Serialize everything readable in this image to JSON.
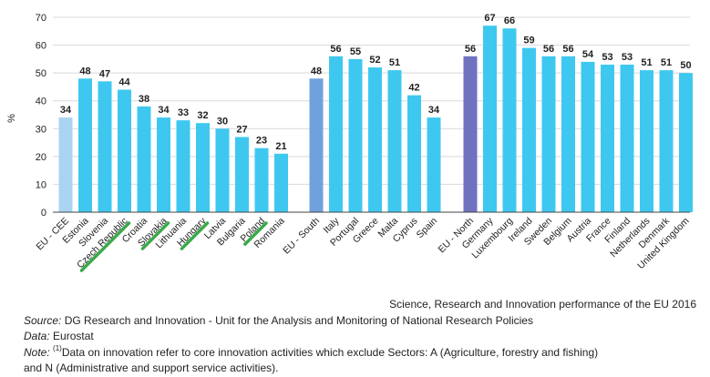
{
  "chart_data": {
    "type": "bar",
    "ylabel": "%",
    "ylim": [
      0,
      70
    ],
    "yticks": [
      0,
      10,
      20,
      30,
      40,
      50,
      60,
      70
    ],
    "grid": true,
    "groups": [
      {
        "categories": [
          "EU - CEE",
          "Estonia",
          "Slovenia",
          "Czech Republic",
          "Croatia",
          "Slovakia",
          "Lithuania",
          "Hungary",
          "Latvia",
          "Bulgaria",
          "Poland",
          "Romania"
        ],
        "values": [
          34,
          48,
          47,
          44,
          38,
          34,
          33,
          32,
          30,
          27,
          23,
          21
        ]
      },
      {
        "categories": [
          "EU - South",
          "Italy",
          "Portugal",
          "Greece",
          "Malta",
          "Cyprus",
          "Spain"
        ],
        "values": [
          48,
          56,
          55,
          52,
          51,
          42,
          34
        ]
      },
      {
        "categories": [
          "EU - North",
          "Germany",
          "Luxembourg",
          "Ireland",
          "Sweden",
          "Belgium",
          "Austria",
          "France",
          "Finland",
          "Netherlands",
          "Denmark",
          "United Kingdom"
        ],
        "values": [
          56,
          67,
          66,
          59,
          56,
          56,
          54,
          53,
          53,
          51,
          51,
          50
        ]
      }
    ],
    "highlighted": [
      "Czech Republic",
      "Slovakia",
      "Hungary",
      "Poland"
    ]
  },
  "colors": {
    "bar": "#3ec8f0",
    "cee": "#a9d4f2",
    "south": "#6fa2dc",
    "north": "#6f72bf",
    "highlight": "#3aaa4a",
    "grid": "#d9d9d9",
    "axis": "#444444"
  },
  "notes": {
    "credit": "Science, Research and Innovation performance of the EU 2016",
    "source_label": "Source:",
    "source_text": " DG Research and Innovation - Unit for the Analysis and Monitoring of National Research Policies",
    "data_label": "Data:",
    "data_text": " Eurostat",
    "note_label": "Note:",
    "note_sup": "(1)",
    "note_text_1": "Data on innovation refer to core innovation activities which exclude Sectors: A (Agriculture, forestry and fishing)",
    "note_text_2": "and N (Administrative and support service activities)."
  }
}
